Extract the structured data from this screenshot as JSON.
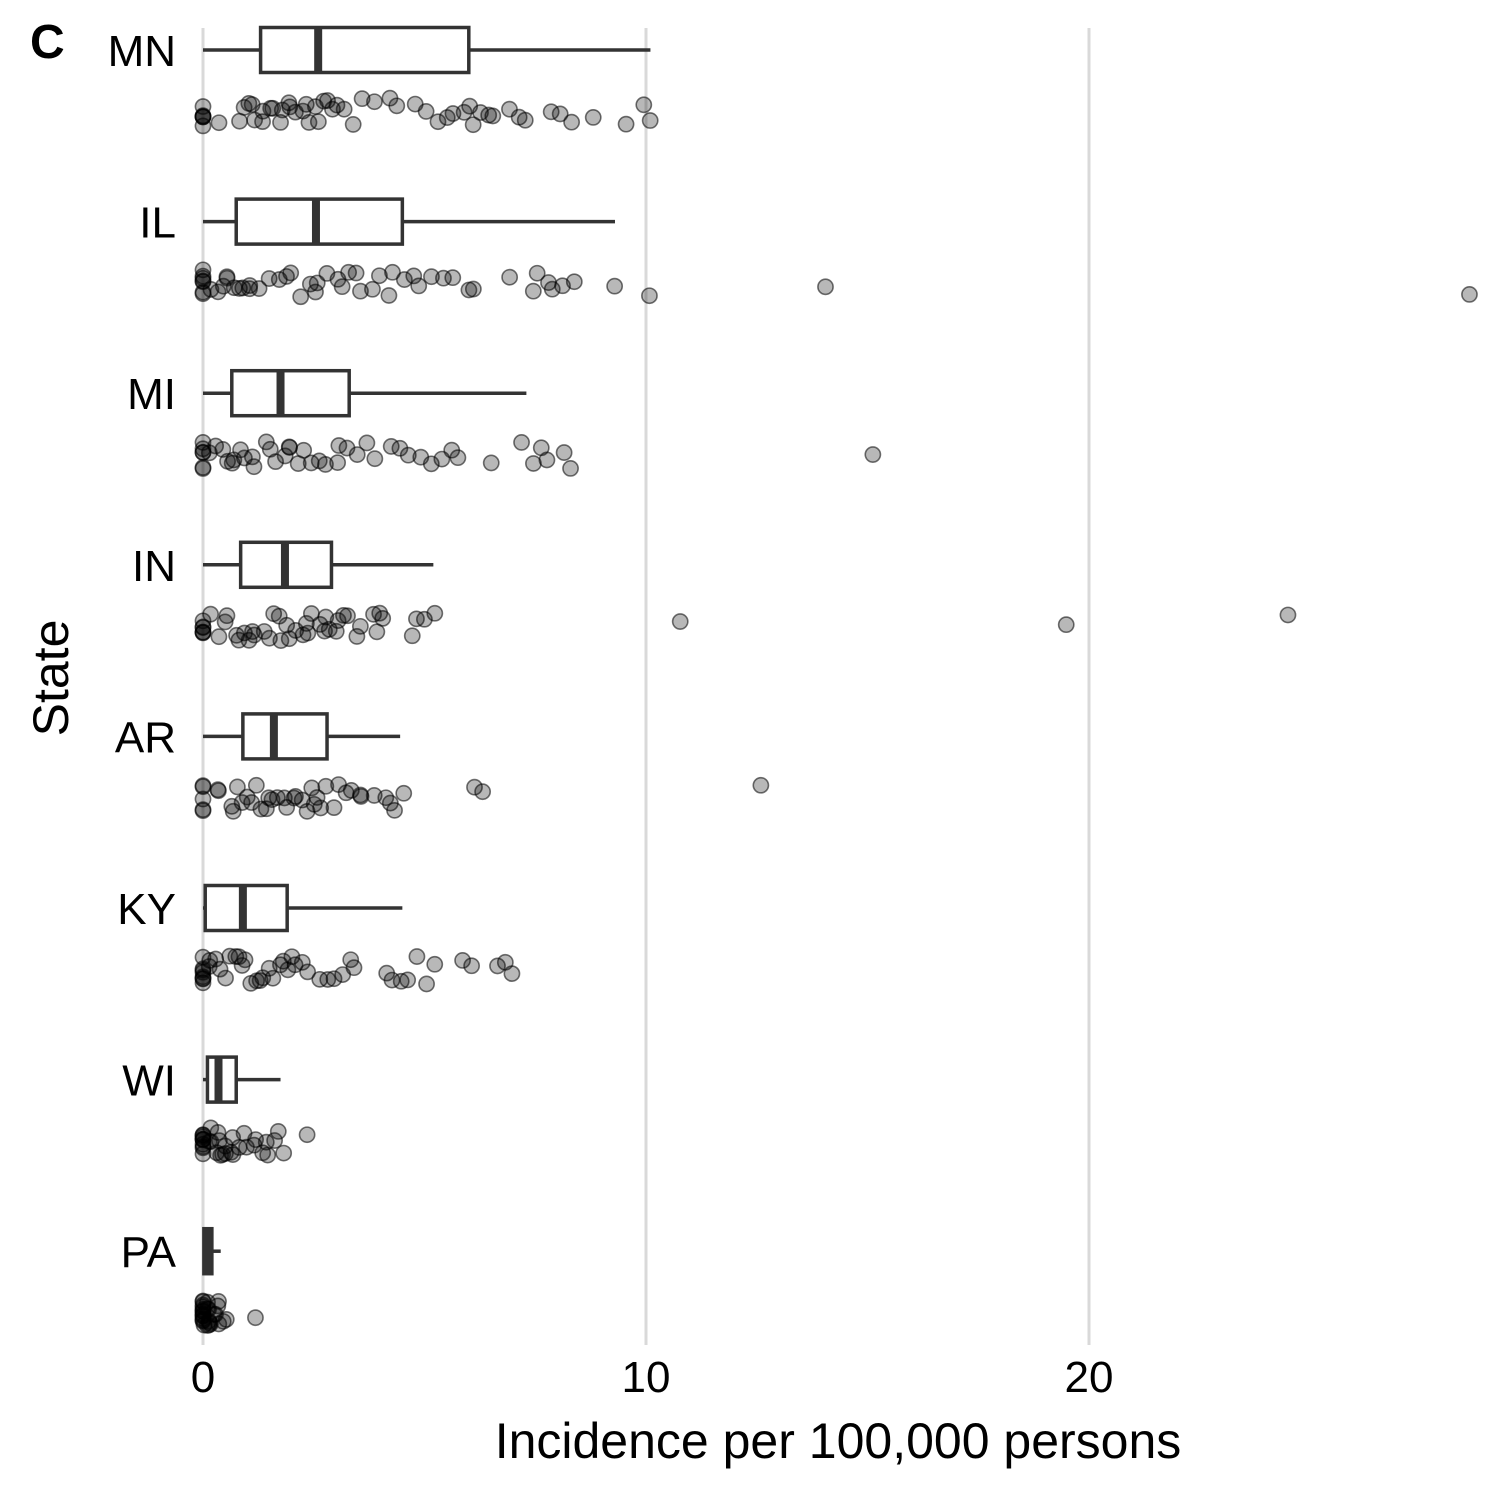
{
  "chart_data": {
    "type": "boxplot-jitter",
    "panel_label": "C",
    "xlabel": "Incidence per 100,000 persons",
    "ylabel": "State",
    "xlim": [
      0,
      28.6
    ],
    "x_ticks": [
      0,
      10,
      20
    ],
    "grid": "vertical major",
    "categories": [
      "MN",
      "IL",
      "MI",
      "IN",
      "AR",
      "KY",
      "WI",
      "PA"
    ],
    "boxes": [
      {
        "state": "MN",
        "whisker_low": 0,
        "q1": 1.3,
        "median": 2.6,
        "q3": 6.0,
        "whisker_high": 10.1
      },
      {
        "state": "IL",
        "whisker_low": 0,
        "q1": 0.75,
        "median": 2.55,
        "q3": 4.5,
        "whisker_high": 9.3
      },
      {
        "state": "MI",
        "whisker_low": 0,
        "q1": 0.65,
        "median": 1.75,
        "q3": 3.3,
        "whisker_high": 7.3
      },
      {
        "state": "IN",
        "whisker_low": 0,
        "q1": 0.85,
        "median": 1.85,
        "q3": 2.9,
        "whisker_high": 5.2
      },
      {
        "state": "AR",
        "whisker_low": 0,
        "q1": 0.9,
        "median": 1.6,
        "q3": 2.8,
        "whisker_high": 4.45
      },
      {
        "state": "KY",
        "whisker_low": 0,
        "q1": 0.05,
        "median": 0.9,
        "q3": 1.9,
        "whisker_high": 4.5
      },
      {
        "state": "WI",
        "whisker_low": 0,
        "q1": 0.1,
        "median": 0.35,
        "q3": 0.75,
        "whisker_high": 1.75
      },
      {
        "state": "PA",
        "whisker_low": 0,
        "q1": 0.02,
        "median": 0.1,
        "q3": 0.2,
        "whisker_high": 0.4
      }
    ],
    "points": {
      "MN": [
        0,
        0,
        0,
        0,
        0,
        0,
        0.4,
        0.8,
        0.9,
        1.0,
        1.1,
        1.2,
        1.3,
        1.4,
        1.5,
        1.6,
        1.7,
        1.8,
        1.9,
        2.0,
        2.1,
        2.2,
        2.3,
        2.4,
        2.5,
        2.6,
        2.7,
        2.8,
        2.9,
        3.0,
        3.2,
        3.4,
        3.6,
        3.9,
        4.2,
        4.4,
        4.8,
        5.0,
        5.3,
        5.5,
        5.7,
        5.9,
        6.0,
        6.1,
        6.3,
        6.4,
        6.6,
        6.9,
        7.1,
        7.3,
        7.8,
        8.1,
        8.3,
        8.8,
        9.6,
        10.0,
        10.1
      ],
      "IL": [
        0,
        0,
        0,
        0,
        0,
        0,
        0,
        0.2,
        0.3,
        0.4,
        0.5,
        0.6,
        0.7,
        0.8,
        0.9,
        1.0,
        1.1,
        1.3,
        1.5,
        1.7,
        1.9,
        2.0,
        2.2,
        2.4,
        2.5,
        2.6,
        2.8,
        3.0,
        3.2,
        3.3,
        3.5,
        3.6,
        3.8,
        4.0,
        4.2,
        4.3,
        4.5,
        4.7,
        4.9,
        5.1,
        5.4,
        5.6,
        6.0,
        6.1,
        6.9,
        7.5,
        7.6,
        7.8,
        7.9,
        8.1,
        8.4,
        9.3,
        10.1,
        14.0,
        28.6
      ],
      "MI": [
        0,
        0,
        0,
        0,
        0,
        0,
        0.2,
        0.3,
        0.4,
        0.5,
        0.6,
        0.7,
        0.8,
        0.9,
        1.1,
        1.2,
        1.4,
        1.5,
        1.6,
        1.8,
        1.9,
        2.0,
        2.1,
        2.3,
        2.4,
        2.6,
        2.8,
        3.0,
        3.1,
        3.3,
        3.5,
        3.7,
        3.9,
        4.2,
        4.5,
        4.6,
        4.9,
        5.2,
        5.4,
        5.6,
        5.8,
        6.5,
        7.2,
        7.4,
        7.6,
        7.8,
        8.1,
        8.3,
        15.1
      ],
      "IN": [
        0,
        0,
        0,
        0,
        0,
        0,
        0.2,
        0.4,
        0.5,
        0.6,
        0.7,
        0.8,
        0.9,
        1.0,
        1.1,
        1.2,
        1.4,
        1.5,
        1.6,
        1.7,
        1.8,
        1.9,
        2.0,
        2.1,
        2.2,
        2.3,
        2.4,
        2.5,
        2.6,
        2.7,
        2.8,
        2.9,
        3.0,
        3.1,
        3.2,
        3.3,
        3.5,
        3.6,
        3.8,
        3.9,
        4.0,
        4.1,
        4.7,
        4.8,
        5.0,
        5.2,
        10.8,
        19.5,
        24.5
      ],
      "AR": [
        0,
        0,
        0,
        0,
        0,
        0.3,
        0.4,
        0.6,
        0.7,
        0.8,
        0.9,
        1.0,
        1.1,
        1.2,
        1.3,
        1.4,
        1.5,
        1.6,
        1.7,
        1.8,
        1.9,
        2.0,
        2.1,
        2.2,
        2.3,
        2.4,
        2.5,
        2.6,
        2.7,
        2.8,
        3.0,
        3.1,
        3.2,
        3.3,
        3.5,
        3.6,
        3.9,
        4.1,
        4.2,
        4.3,
        4.5,
        6.1,
        6.3,
        12.6
      ],
      "KY": [
        0,
        0,
        0,
        0,
        0,
        0,
        0,
        0,
        0.1,
        0.2,
        0.3,
        0.4,
        0.5,
        0.6,
        0.7,
        0.8,
        0.9,
        1.0,
        1.1,
        1.2,
        1.3,
        1.4,
        1.5,
        1.6,
        1.7,
        1.8,
        1.9,
        2.0,
        2.1,
        2.2,
        2.4,
        2.6,
        2.8,
        3.0,
        3.2,
        3.3,
        3.4,
        4.1,
        4.3,
        4.5,
        4.6,
        4.8,
        5.0,
        5.2,
        5.9,
        6.1,
        6.6,
        6.8,
        7.0
      ],
      "WI": [
        0,
        0,
        0,
        0,
        0,
        0,
        0,
        0,
        0,
        0.05,
        0.1,
        0.15,
        0.2,
        0.25,
        0.3,
        0.35,
        0.4,
        0.45,
        0.5,
        0.55,
        0.6,
        0.65,
        0.7,
        0.8,
        0.9,
        1.0,
        1.1,
        1.2,
        1.3,
        1.4,
        1.5,
        1.6,
        1.7,
        1.8,
        2.3
      ],
      "PA": [
        0,
        0,
        0,
        0,
        0,
        0,
        0,
        0,
        0,
        0,
        0,
        0,
        0.02,
        0.04,
        0.06,
        0.08,
        0.1,
        0.12,
        0.14,
        0.16,
        0.18,
        0.2,
        0.22,
        0.25,
        0.3,
        0.35,
        0.4,
        0.5,
        0.55,
        1.2
      ]
    }
  }
}
